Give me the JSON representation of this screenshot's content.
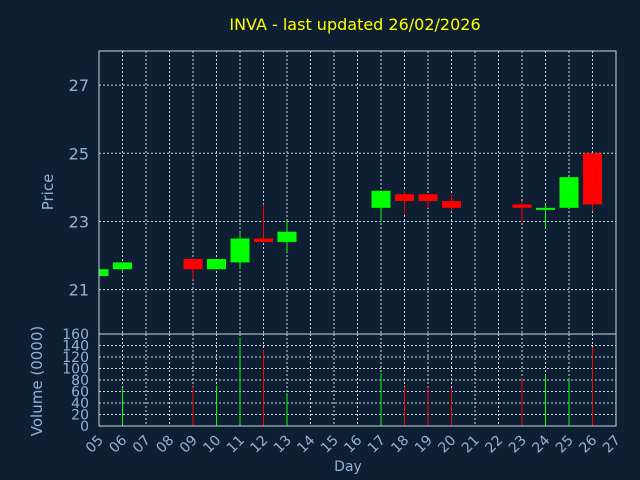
{
  "title": "INVA - last updated 26/02/2026",
  "colors": {
    "background": "#0f1f33",
    "up": "#00ff00",
    "down": "#ff0000",
    "title": "#ffff00",
    "axis_text": "#8fb3d9",
    "grid": "#c8d4e0"
  },
  "chart_data": [
    {
      "type": "candlestick",
      "ylabel": "Price",
      "ylim": [
        19.7,
        28.0
      ],
      "yticks": [
        21,
        23,
        25,
        27
      ],
      "xlim": [
        5,
        27
      ],
      "grid": true,
      "candles": [
        {
          "day": 5,
          "open": 21.4,
          "high": 21.6,
          "low": 21.4,
          "close": 21.6
        },
        {
          "day": 6,
          "open": 21.6,
          "high": 21.8,
          "low": 21.5,
          "close": 21.8
        },
        {
          "day": 9,
          "open": 21.9,
          "high": 21.9,
          "low": 21.3,
          "close": 21.6
        },
        {
          "day": 10,
          "open": 21.6,
          "high": 21.9,
          "low": 21.6,
          "close": 21.9
        },
        {
          "day": 11,
          "open": 21.8,
          "high": 22.7,
          "low": 21.6,
          "close": 22.5
        },
        {
          "day": 12,
          "open": 22.5,
          "high": 23.5,
          "low": 22.4,
          "close": 22.4
        },
        {
          "day": 13,
          "open": 22.4,
          "high": 23.0,
          "low": 22.1,
          "close": 22.7
        },
        {
          "day": 17,
          "open": 23.4,
          "high": 23.9,
          "low": 23.0,
          "close": 23.9
        },
        {
          "day": 18,
          "open": 23.8,
          "high": 23.9,
          "low": 23.2,
          "close": 23.6
        },
        {
          "day": 19,
          "open": 23.8,
          "high": 23.8,
          "low": 23.4,
          "close": 23.6
        },
        {
          "day": 20,
          "open": 23.6,
          "high": 23.8,
          "low": 23.3,
          "close": 23.4
        },
        {
          "day": 23,
          "open": 23.5,
          "high": 23.6,
          "low": 23.0,
          "close": 23.4
        },
        {
          "day": 24,
          "open": 23.4,
          "high": 23.5,
          "low": 22.8,
          "close": 23.4
        },
        {
          "day": 25,
          "open": 23.4,
          "high": 24.3,
          "low": 23.4,
          "close": 24.3
        },
        {
          "day": 26,
          "open": 25.0,
          "high": 25.0,
          "low": 23.3,
          "close": 23.5
        }
      ]
    },
    {
      "type": "bar",
      "ylabel": "Volume (0000)",
      "xlabel": "Day",
      "ylim": [
        0,
        160
      ],
      "yticks": [
        0,
        20,
        40,
        60,
        80,
        100,
        120,
        140,
        160
      ],
      "xlim": [
        5,
        27
      ],
      "xticks": [
        "05",
        "06",
        "07",
        "08",
        "09",
        "10",
        "11",
        "12",
        "13",
        "14",
        "15",
        "16",
        "17",
        "18",
        "19",
        "20",
        "21",
        "22",
        "23",
        "24",
        "25",
        "26",
        "27"
      ],
      "grid": true,
      "volumes": [
        {
          "day": 5,
          "value": 0,
          "dir": "up"
        },
        {
          "day": 6,
          "value": 65,
          "dir": "up"
        },
        {
          "day": 9,
          "value": 68,
          "dir": "down"
        },
        {
          "day": 10,
          "value": 70,
          "dir": "up"
        },
        {
          "day": 11,
          "value": 152,
          "dir": "up"
        },
        {
          "day": 12,
          "value": 132,
          "dir": "down"
        },
        {
          "day": 13,
          "value": 57,
          "dir": "up"
        },
        {
          "day": 17,
          "value": 92,
          "dir": "up"
        },
        {
          "day": 18,
          "value": 68,
          "dir": "down"
        },
        {
          "day": 19,
          "value": 67,
          "dir": "down"
        },
        {
          "day": 20,
          "value": 66,
          "dir": "down"
        },
        {
          "day": 23,
          "value": 83,
          "dir": "down"
        },
        {
          "day": 24,
          "value": 88,
          "dir": "up"
        },
        {
          "day": 25,
          "value": 83,
          "dir": "up"
        },
        {
          "day": 26,
          "value": 137,
          "dir": "down"
        }
      ]
    }
  ]
}
